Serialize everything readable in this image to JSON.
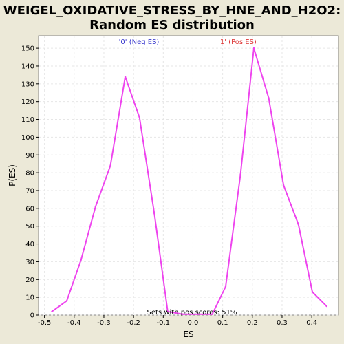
{
  "chart_data": {
    "type": "line",
    "title_line1": "WEIGEL_OXIDATIVE_STRESS_BY_HNE_AND_H2O2:",
    "title_line2": "Random ES distribution",
    "xlabel": "ES",
    "ylabel": "P(ES)",
    "xlim": [
      -0.52,
      0.49
    ],
    "ylim": [
      0,
      157
    ],
    "x_ticks": [
      -0.5,
      -0.4,
      -0.3,
      -0.2,
      -0.1,
      0.0,
      0.1,
      0.2,
      0.3,
      0.4
    ],
    "x_tick_labels": [
      "-0.5",
      "-0.4",
      "-0.3",
      "-0.2",
      "-0.1",
      "0.0",
      "0.1",
      "0.2",
      "0.3",
      "0.4"
    ],
    "y_ticks": [
      0,
      10,
      20,
      30,
      40,
      50,
      60,
      70,
      80,
      90,
      100,
      110,
      120,
      130,
      140,
      150
    ],
    "y_tick_labels": [
      "0",
      "10",
      "20",
      "30",
      "40",
      "50",
      "60",
      "70",
      "80",
      "90",
      "100",
      "110",
      "120",
      "130",
      "140",
      "150"
    ],
    "grid": true,
    "series_color": "#ee44ee",
    "series": [
      {
        "x": [
          -0.475,
          -0.425,
          -0.377,
          -0.328,
          -0.278,
          -0.228,
          -0.18,
          -0.13,
          -0.085,
          -0.035,
          0.015,
          0.065,
          0.11,
          0.16,
          0.205,
          0.255,
          0.305,
          0.355,
          0.402,
          0.45
        ],
        "y": [
          2,
          8,
          31,
          61,
          84,
          134,
          111,
          57,
          2,
          0.5,
          0.5,
          0.5,
          16,
          79,
          150,
          122,
          73,
          51,
          13,
          5
        ]
      }
    ],
    "annotations": {
      "neg_label": "'0' (Neg ES)",
      "neg_color": "#3333cc",
      "pos_label": "'1' (Pos ES)",
      "pos_color": "#dd3333",
      "sets_label": "Sets with pos scores: 51%"
    }
  }
}
